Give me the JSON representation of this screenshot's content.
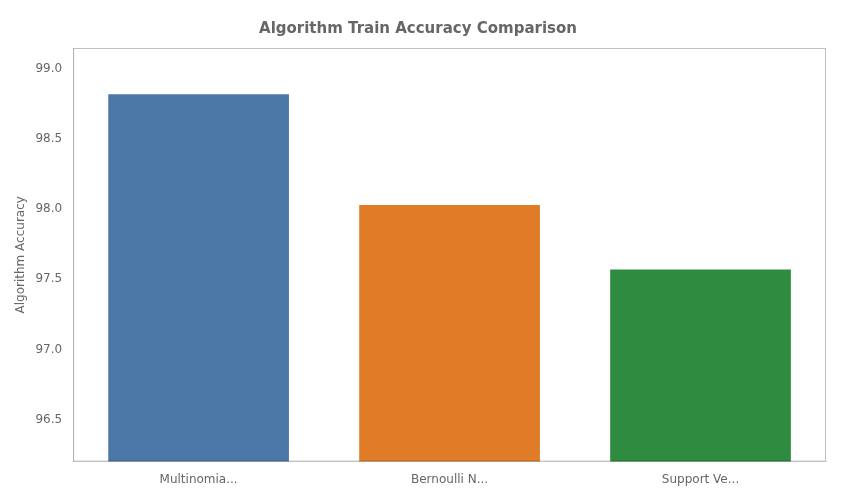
{
  "chart_data": {
    "type": "bar",
    "title": "Algorithm Train Accuracy Comparison",
    "categories": [
      "Multinomia...",
      "Bernoulli N...",
      "Support Ve..."
    ],
    "values": [
      98.82,
      98.03,
      97.57
    ],
    "colors": [
      "#4c78a8",
      "#e07b27",
      "#2e8b40"
    ],
    "ylabel": "Algorithm Accuracy",
    "ylim": [
      96.2,
      99.15
    ],
    "yticks": [
      96.5,
      {
        "value": 97.0,
        "label": "97.0"
      },
      97.5,
      {
        "value": 98.0,
        "label": "98.0"
      },
      98.5,
      {
        "value": 99.0,
        "label": "99.0"
      }
    ],
    "grid": false
  }
}
